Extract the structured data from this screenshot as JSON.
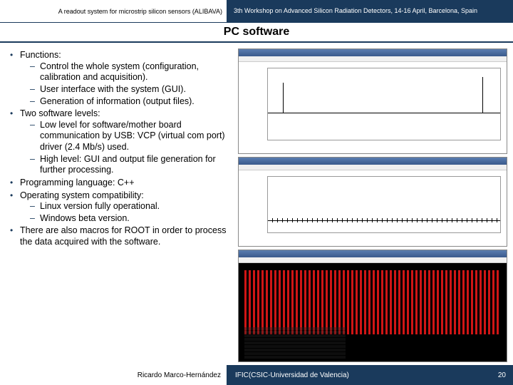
{
  "header": {
    "left": "A readout system for microstrip silicon sensors (ALIBAVA)",
    "right": "3th Workshop on Advanced Silicon Radiation Detectors, 14-16 April, Barcelona, Spain"
  },
  "title": "PC software",
  "bullets": [
    {
      "text": "Functions:",
      "sub": [
        "Control the whole system (configuration, calibration and acquisition).",
        "User interface with the system (GUI).",
        "Generation of information (output files)."
      ]
    },
    {
      "text": "Two software levels:",
      "sub": [
        "Low level for software/mother board communication by USB: VCP (virtual com port) driver (2.4 Mb/s) used.",
        "High level: GUI and output file generation for further processing."
      ]
    },
    {
      "text": "Programming language: C++"
    },
    {
      "text": "Operating system compatibility:",
      "sub": [
        "Linux version fully operational.",
        "Windows beta version."
      ]
    },
    {
      "text": "There are also macros for ROOT in order to process the data acquired with the software."
    }
  ],
  "footer": {
    "author": "Ricardo Marco-Hernández",
    "affiliation": "IFIC(CSIC-Universidad de Valencia)",
    "page": "20"
  },
  "colors": {
    "brand_dark": "#1a3a5c",
    "red": "#d01515",
    "background": "#ffffff"
  },
  "screenshots": [
    {
      "type": "line-chart",
      "desc": "GUI window with signal rise and spike plot"
    },
    {
      "type": "line-chart",
      "desc": "GUI window with flat noise baseline plot"
    },
    {
      "type": "oscilloscope",
      "desc": "Black background with dense red vertical bars and readout text"
    }
  ]
}
